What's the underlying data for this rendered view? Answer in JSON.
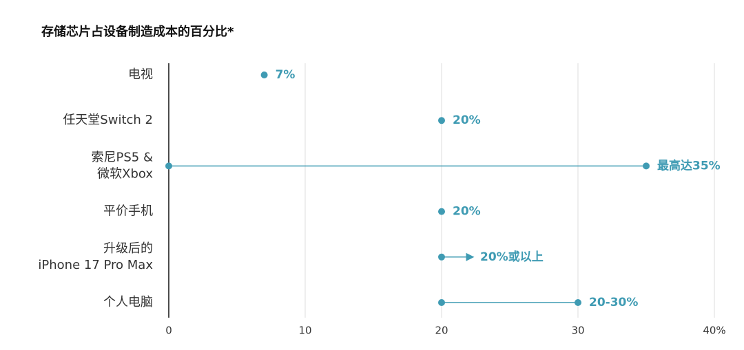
{
  "chart_data": {
    "type": "dot-range",
    "title": "存储芯片占设备制造成本的百分比*",
    "categories": [
      [
        "电视"
      ],
      [
        "任天堂Switch 2"
      ],
      [
        "索尼PS5 &",
        "微软Xbox"
      ],
      [
        "平价手机"
      ],
      [
        "升级后的",
        "iPhone 17 Pro Max"
      ],
      [
        "个人电脑"
      ]
    ],
    "start": [
      null,
      null,
      0,
      null,
      null,
      20
    ],
    "values": [
      7,
      20,
      35,
      20,
      20,
      30
    ],
    "value_labels": [
      "7%",
      "20%",
      "最高达35%",
      "20%",
      "20%或以上",
      "20-30%"
    ],
    "arrow": [
      false,
      false,
      false,
      false,
      true,
      false
    ],
    "color": "#3f9bb3",
    "xlim": [
      0,
      40
    ],
    "xticks": [
      0,
      10,
      20,
      30,
      {
        "value": 40,
        "label": "40%"
      }
    ],
    "grid": true
  }
}
